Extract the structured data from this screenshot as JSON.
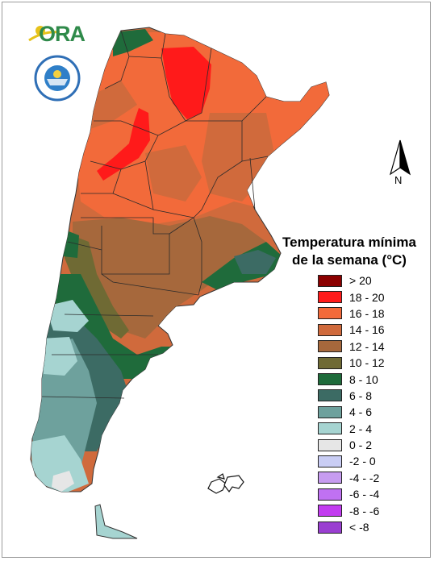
{
  "logos": {
    "ora": {
      "text": "ORA"
    },
    "smn": {
      "text": "SERVICIO METEOROLÓGICO NACIONAL · ARGENTINA"
    }
  },
  "north_arrow": {
    "label": "N"
  },
  "legend": {
    "title_line1": "Temperatura mínima",
    "title_line2": "de la semana (°C)",
    "items": [
      {
        "label": "> 20",
        "color": "#8b0000"
      },
      {
        "label": "18 - 20",
        "color": "#ff1a1a"
      },
      {
        "label": "16 - 18",
        "color": "#f26a3a"
      },
      {
        "label": "14 - 16",
        "color": "#d06a3c"
      },
      {
        "label": "12 - 14",
        "color": "#a6683c"
      },
      {
        "label": "10 - 12",
        "color": "#6f6a34"
      },
      {
        "label": "8 - 10",
        "color": "#1f6b3b"
      },
      {
        "label": "6 - 8",
        "color": "#3c6b64"
      },
      {
        "label": "4 - 6",
        "color": "#6ea19d"
      },
      {
        "label": "2 - 4",
        "color": "#a6d4d1"
      },
      {
        "label": "0 - 2",
        "color": "#e6e6e6"
      },
      {
        "label": "-2 - 0",
        "color": "#c9cdf4"
      },
      {
        "label": "-4 - -2",
        "color": "#c79cf0"
      },
      {
        "label": "-6 - -4",
        "color": "#c071f2"
      },
      {
        "label": "-8 - -6",
        "color": "#c23cf0"
      },
      {
        "label": "< -8",
        "color": "#9a3fd1"
      }
    ]
  }
}
